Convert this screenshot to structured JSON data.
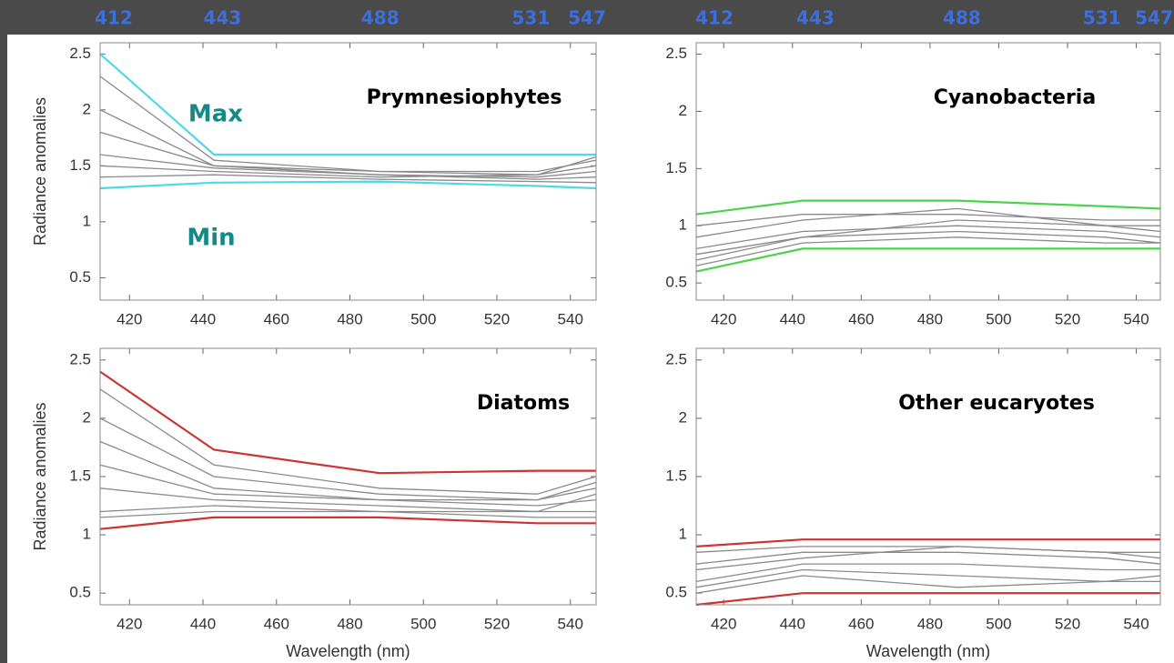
{
  "chart_data": [
    {
      "type": "line",
      "title": "Prymnesiophytes",
      "ylabel": "Radiance anomalies",
      "max_label": "Max",
      "min_label": "Min",
      "top_xticks": [
        412,
        443,
        488,
        531,
        547
      ],
      "x": [
        412,
        443,
        488,
        531,
        547
      ],
      "xlim": [
        412,
        547
      ],
      "xticks": [
        420,
        440,
        460,
        480,
        500,
        520,
        540
      ],
      "ylim": [
        0.3,
        2.6
      ],
      "yticks": [
        0.5,
        1,
        1.5,
        2,
        2.5
      ],
      "series": [
        {
          "color": "#8a8a8a",
          "values": [
            2.3,
            1.55,
            1.45,
            1.42,
            1.5
          ]
        },
        {
          "color": "#8a8a8a",
          "values": [
            2.0,
            1.5,
            1.42,
            1.4,
            1.45
          ]
        },
        {
          "color": "#8a8a8a",
          "values": [
            1.8,
            1.5,
            1.45,
            1.45,
            1.55
          ]
        },
        {
          "color": "#8a8a8a",
          "values": [
            1.6,
            1.48,
            1.42,
            1.38,
            1.4
          ]
        },
        {
          "color": "#8a8a8a",
          "values": [
            1.5,
            1.45,
            1.4,
            1.42,
            1.58
          ]
        },
        {
          "color": "#8a8a8a",
          "values": [
            1.4,
            1.42,
            1.38,
            1.36,
            1.35
          ]
        },
        {
          "color": "#4dd9e6",
          "values": [
            2.5,
            1.6,
            1.6,
            1.6,
            1.6
          ]
        },
        {
          "color": "#4dd9e6",
          "values": [
            1.3,
            1.35,
            1.36,
            1.32,
            1.3
          ]
        }
      ]
    },
    {
      "type": "line",
      "title": "Cyanobacteria",
      "top_xticks": [
        412,
        443,
        488,
        531,
        547
      ],
      "x": [
        412,
        443,
        488,
        531,
        547
      ],
      "xlim": [
        412,
        547
      ],
      "xticks": [
        420,
        440,
        460,
        480,
        500,
        520,
        540
      ],
      "ylim": [
        0.35,
        2.6
      ],
      "yticks": [
        0.5,
        1,
        1.5,
        2,
        2.5
      ],
      "series": [
        {
          "color": "#8a8a8a",
          "values": [
            1.0,
            1.1,
            1.1,
            1.05,
            1.05
          ]
        },
        {
          "color": "#8a8a8a",
          "values": [
            0.9,
            1.05,
            1.15,
            1.0,
            0.95
          ]
        },
        {
          "color": "#8a8a8a",
          "values": [
            0.8,
            0.95,
            1.0,
            0.95,
            0.9
          ]
        },
        {
          "color": "#8a8a8a",
          "values": [
            0.75,
            0.9,
            0.95,
            0.9,
            0.85
          ]
        },
        {
          "color": "#8a8a8a",
          "values": [
            0.7,
            0.9,
            1.05,
            1.0,
            1.0
          ]
        },
        {
          "color": "#8a8a8a",
          "values": [
            0.65,
            0.85,
            0.9,
            0.85,
            0.85
          ]
        },
        {
          "color": "#4cd34c",
          "values": [
            1.1,
            1.22,
            1.22,
            1.17,
            1.15
          ]
        },
        {
          "color": "#4cd34c",
          "values": [
            0.6,
            0.8,
            0.8,
            0.8,
            0.8
          ]
        }
      ]
    },
    {
      "type": "line",
      "title": "Diatoms",
      "ylabel": "Radiance anomalies",
      "xlabel": "Wavelength (nm)",
      "x": [
        412,
        443,
        488,
        531,
        547
      ],
      "xlim": [
        412,
        547
      ],
      "xticks": [
        420,
        440,
        460,
        480,
        500,
        520,
        540
      ],
      "ylim": [
        0.4,
        2.6
      ],
      "yticks": [
        0.5,
        1,
        1.5,
        2,
        2.5
      ],
      "series": [
        {
          "color": "#8a8a8a",
          "values": [
            2.25,
            1.6,
            1.4,
            1.35,
            1.5
          ]
        },
        {
          "color": "#8a8a8a",
          "values": [
            2.0,
            1.5,
            1.35,
            1.3,
            1.4
          ]
        },
        {
          "color": "#8a8a8a",
          "values": [
            1.8,
            1.4,
            1.3,
            1.25,
            1.3
          ]
        },
        {
          "color": "#8a8a8a",
          "values": [
            1.6,
            1.35,
            1.3,
            1.3,
            1.45
          ]
        },
        {
          "color": "#8a8a8a",
          "values": [
            1.4,
            1.3,
            1.25,
            1.2,
            1.2
          ]
        },
        {
          "color": "#8a8a8a",
          "values": [
            1.2,
            1.25,
            1.2,
            1.2,
            1.35
          ]
        },
        {
          "color": "#8a8a8a",
          "values": [
            1.15,
            1.2,
            1.2,
            1.15,
            1.15
          ]
        },
        {
          "color": "#cc3333",
          "values": [
            2.4,
            1.73,
            1.53,
            1.55,
            1.55
          ]
        },
        {
          "color": "#cc3333",
          "values": [
            1.05,
            1.15,
            1.15,
            1.1,
            1.1
          ]
        }
      ]
    },
    {
      "type": "line",
      "title": "Other eucaryotes",
      "xlabel": "Wavelength (nm)",
      "x": [
        412,
        443,
        488,
        531,
        547
      ],
      "xlim": [
        412,
        547
      ],
      "xticks": [
        420,
        440,
        460,
        480,
        500,
        520,
        540
      ],
      "ylim": [
        0.4,
        2.6
      ],
      "yticks": [
        0.5,
        1,
        1.5,
        2,
        2.5
      ],
      "series": [
        {
          "color": "#8a8a8a",
          "values": [
            0.85,
            0.9,
            0.9,
            0.85,
            0.85
          ]
        },
        {
          "color": "#8a8a8a",
          "values": [
            0.75,
            0.85,
            0.85,
            0.8,
            0.75
          ]
        },
        {
          "color": "#8a8a8a",
          "values": [
            0.7,
            0.8,
            0.9,
            0.85,
            0.8
          ]
        },
        {
          "color": "#8a8a8a",
          "values": [
            0.6,
            0.75,
            0.75,
            0.7,
            0.7
          ]
        },
        {
          "color": "#8a8a8a",
          "values": [
            0.55,
            0.7,
            0.65,
            0.6,
            0.6
          ]
        },
        {
          "color": "#8a8a8a",
          "values": [
            0.5,
            0.65,
            0.55,
            0.6,
            0.65
          ]
        },
        {
          "color": "#cc3333",
          "values": [
            0.9,
            0.96,
            0.96,
            0.96,
            0.96
          ]
        },
        {
          "color": "#cc3333",
          "values": [
            0.4,
            0.5,
            0.5,
            0.5,
            0.5
          ]
        }
      ]
    }
  ]
}
